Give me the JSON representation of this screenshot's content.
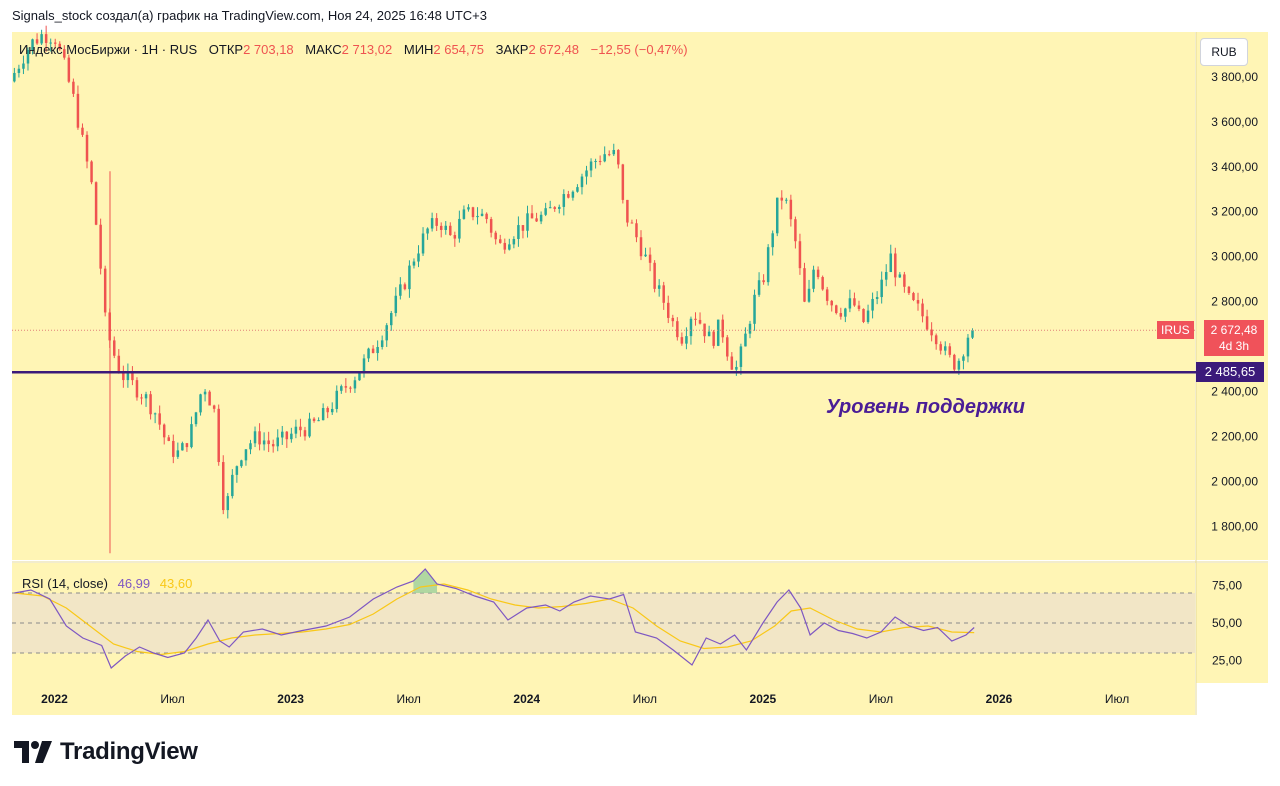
{
  "header": {
    "text": "Signals_stock создал(а) график на TradingView.com, Ноя 24, 2025 16:48 UTC+3"
  },
  "legend": {
    "symbol": "Индекс МосБиржи · 1Н · RUS",
    "open_label": "ОТКР",
    "open_value": "2 703,18",
    "high_label": "МАКС",
    "high_value": "2 713,02",
    "low_label": "МИН",
    "low_value": "2 654,75",
    "close_label": "ЗАКР",
    "close_value": "2 672,48",
    "change_value": "−12,55 (−0,47%)"
  },
  "currency": "RUB",
  "price_tag": {
    "ticker": "IRUS",
    "price": "2 672,48",
    "countdown": "4d 3h"
  },
  "support_tag": "2 485,65",
  "support_label": "Уровень поддержки",
  "rsi_legend": {
    "label": "RSI (14, close)",
    "rsi_value": "46,99",
    "ma_value": "43,60"
  },
  "logo": {
    "text": "TradingView"
  },
  "colors": {
    "background": "#fff5b5",
    "up": "#26a69a",
    "down": "#ef5350",
    "support": "#3b1a7a",
    "rsi": "#7e57c2",
    "rsi_ma": "#f9c818"
  },
  "chart_data": {
    "type": "candlestick",
    "title": "Индекс МосБиржи · 1Н · RUS",
    "price_axis": {
      "ticks": [
        1800,
        2000,
        2200,
        2400,
        2600,
        2800,
        3000,
        3200,
        3400,
        3600,
        3800
      ],
      "tick_labels": [
        "1 800,00",
        "2 000,00",
        "2 200,00",
        "2 400,00",
        "2 600,00",
        "2 800,00",
        "3 000,00",
        "3 200,00",
        "3 400,00",
        "3 600,00",
        "3 800,00"
      ],
      "range": [
        1650,
        4000
      ]
    },
    "time_axis": {
      "range": [
        2021.82,
        2026.83
      ],
      "ticks": [
        {
          "t": 2022.0,
          "label": "2022",
          "bold": true
        },
        {
          "t": 2022.5,
          "label": "Июл",
          "bold": false
        },
        {
          "t": 2023.0,
          "label": "2023",
          "bold": true
        },
        {
          "t": 2023.5,
          "label": "Июл",
          "bold": false
        },
        {
          "t": 2024.0,
          "label": "2024",
          "bold": true
        },
        {
          "t": 2024.5,
          "label": "Июл",
          "bold": false
        },
        {
          "t": 2025.0,
          "label": "2025",
          "bold": true
        },
        {
          "t": 2025.5,
          "label": "Июл",
          "bold": false
        },
        {
          "t": 2026.0,
          "label": "2026",
          "bold": true
        },
        {
          "t": 2026.5,
          "label": "Июл",
          "bold": false
        }
      ]
    },
    "support_level": 2485.65,
    "last_close": 2672.48,
    "price_path": [
      [
        2021.83,
        3780
      ],
      [
        2021.88,
        3880
      ],
      [
        2021.92,
        3950
      ],
      [
        2021.97,
        3990
      ],
      [
        2022.02,
        3980
      ],
      [
        2022.06,
        3850
      ],
      [
        2022.1,
        3700
      ],
      [
        2022.14,
        3500
      ],
      [
        2022.18,
        3300
      ],
      [
        2022.2,
        3100
      ],
      [
        2022.22,
        2900
      ],
      [
        2022.235,
        2700
      ],
      [
        2022.26,
        2600
      ],
      [
        2022.3,
        2480
      ],
      [
        2022.35,
        2430
      ],
      [
        2022.4,
        2380
      ],
      [
        2022.45,
        2300
      ],
      [
        2022.5,
        2150
      ],
      [
        2022.55,
        2120
      ],
      [
        2022.6,
        2230
      ],
      [
        2022.65,
        2440
      ],
      [
        2022.7,
        2300
      ],
      [
        2022.72,
        2050
      ],
      [
        2022.74,
        1850
      ],
      [
        2022.78,
        2050
      ],
      [
        2022.82,
        2150
      ],
      [
        2022.88,
        2200
      ],
      [
        2022.94,
        2160
      ],
      [
        2023.0,
        2190
      ],
      [
        2023.05,
        2230
      ],
      [
        2023.1,
        2240
      ],
      [
        2023.15,
        2280
      ],
      [
        2023.2,
        2350
      ],
      [
        2023.25,
        2420
      ],
      [
        2023.3,
        2480
      ],
      [
        2023.35,
        2560
      ],
      [
        2023.4,
        2650
      ],
      [
        2023.45,
        2760
      ],
      [
        2023.5,
        2880
      ],
      [
        2023.55,
        3020
      ],
      [
        2023.6,
        3120
      ],
      [
        2023.65,
        3160
      ],
      [
        2023.7,
        3080
      ],
      [
        2023.75,
        3180
      ],
      [
        2023.8,
        3200
      ],
      [
        2023.85,
        3170
      ],
      [
        2023.9,
        3040
      ],
      [
        2023.95,
        3100
      ],
      [
        2024.0,
        3140
      ],
      [
        2024.05,
        3170
      ],
      [
        2024.1,
        3180
      ],
      [
        2024.15,
        3250
      ],
      [
        2024.2,
        3300
      ],
      [
        2024.25,
        3360
      ],
      [
        2024.3,
        3420
      ],
      [
        2024.35,
        3460
      ],
      [
        2024.4,
        3450
      ],
      [
        2024.43,
        3200
      ],
      [
        2024.47,
        3120
      ],
      [
        2024.52,
        3000
      ],
      [
        2024.56,
        2880
      ],
      [
        2024.6,
        2800
      ],
      [
        2024.64,
        2700
      ],
      [
        2024.68,
        2640
      ],
      [
        2024.72,
        2760
      ],
      [
        2024.76,
        2700
      ],
      [
        2024.8,
        2620
      ],
      [
        2024.84,
        2700
      ],
      [
        2024.88,
        2540
      ],
      [
        2024.91,
        2500
      ],
      [
        2024.94,
        2620
      ],
      [
        2024.98,
        2800
      ],
      [
        2025.02,
        2900
      ],
      [
        2025.06,
        3120
      ],
      [
        2025.09,
        3280
      ],
      [
        2025.12,
        3230
      ],
      [
        2025.16,
        3050
      ],
      [
        2025.2,
        2750
      ],
      [
        2025.24,
        2980
      ],
      [
        2025.28,
        2850
      ],
      [
        2025.32,
        2780
      ],
      [
        2025.36,
        2760
      ],
      [
        2025.4,
        2800
      ],
      [
        2025.44,
        2700
      ],
      [
        2025.48,
        2780
      ],
      [
        2025.52,
        2870
      ],
      [
        2025.56,
        3000
      ],
      [
        2025.6,
        2880
      ],
      [
        2025.64,
        2800
      ],
      [
        2025.68,
        2760
      ],
      [
        2025.72,
        2700
      ],
      [
        2025.76,
        2640
      ],
      [
        2025.8,
        2550
      ],
      [
        2025.84,
        2520
      ],
      [
        2025.87,
        2600
      ],
      [
        2025.895,
        2672
      ]
    ],
    "rsi": {
      "label": "RSI (14, close)",
      "period": 14,
      "current": 46.99,
      "ma_current": 43.6,
      "axis_ticks": [
        25,
        50,
        75
      ],
      "axis_labels": [
        "25,00",
        "50,00",
        "75,00"
      ],
      "band": [
        30,
        70
      ],
      "range": [
        10,
        90
      ],
      "path": [
        [
          2021.83,
          70
        ],
        [
          2021.9,
          72
        ],
        [
          2021.98,
          66
        ],
        [
          2022.05,
          48
        ],
        [
          2022.12,
          40
        ],
        [
          2022.2,
          35
        ],
        [
          2022.24,
          20
        ],
        [
          2022.3,
          28
        ],
        [
          2022.36,
          34
        ],
        [
          2022.42,
          30
        ],
        [
          2022.48,
          27
        ],
        [
          2022.55,
          30
        ],
        [
          2022.6,
          40
        ],
        [
          2022.65,
          52
        ],
        [
          2022.7,
          38
        ],
        [
          2022.74,
          34
        ],
        [
          2022.8,
          44
        ],
        [
          2022.88,
          46
        ],
        [
          2022.96,
          42
        ],
        [
          2023.05,
          45
        ],
        [
          2023.15,
          48
        ],
        [
          2023.25,
          54
        ],
        [
          2023.35,
          66
        ],
        [
          2023.45,
          74
        ],
        [
          2023.52,
          78
        ],
        [
          2023.57,
          86
        ],
        [
          2023.62,
          76
        ],
        [
          2023.7,
          73
        ],
        [
          2023.78,
          68
        ],
        [
          2023.86,
          64
        ],
        [
          2023.92,
          52
        ],
        [
          2024.0,
          60
        ],
        [
          2024.08,
          62
        ],
        [
          2024.14,
          58
        ],
        [
          2024.2,
          64
        ],
        [
          2024.27,
          68
        ],
        [
          2024.35,
          66
        ],
        [
          2024.41,
          69
        ],
        [
          2024.46,
          44
        ],
        [
          2024.55,
          40
        ],
        [
          2024.62,
          32
        ],
        [
          2024.7,
          22
        ],
        [
          2024.76,
          40
        ],
        [
          2024.82,
          36
        ],
        [
          2024.88,
          42
        ],
        [
          2024.93,
          32
        ],
        [
          2025.0,
          50
        ],
        [
          2025.06,
          64
        ],
        [
          2025.11,
          72
        ],
        [
          2025.16,
          60
        ],
        [
          2025.2,
          42
        ],
        [
          2025.26,
          50
        ],
        [
          2025.32,
          45
        ],
        [
          2025.38,
          43
        ],
        [
          2025.44,
          40
        ],
        [
          2025.5,
          44
        ],
        [
          2025.56,
          54
        ],
        [
          2025.62,
          48
        ],
        [
          2025.68,
          45
        ],
        [
          2025.74,
          47
        ],
        [
          2025.8,
          38
        ],
        [
          2025.86,
          42
        ],
        [
          2025.895,
          47
        ]
      ],
      "ma_path": [
        [
          2021.83,
          70
        ],
        [
          2021.95,
          68
        ],
        [
          2022.05,
          60
        ],
        [
          2022.15,
          48
        ],
        [
          2022.25,
          36
        ],
        [
          2022.35,
          31
        ],
        [
          2022.45,
          29
        ],
        [
          2022.55,
          31
        ],
        [
          2022.65,
          36
        ],
        [
          2022.75,
          40
        ],
        [
          2022.85,
          42
        ],
        [
          2022.95,
          43
        ],
        [
          2023.05,
          44
        ],
        [
          2023.15,
          46
        ],
        [
          2023.25,
          49
        ],
        [
          2023.35,
          56
        ],
        [
          2023.45,
          66
        ],
        [
          2023.55,
          74
        ],
        [
          2023.65,
          76
        ],
        [
          2023.75,
          72
        ],
        [
          2023.85,
          66
        ],
        [
          2023.95,
          62
        ],
        [
          2024.05,
          60
        ],
        [
          2024.15,
          61
        ],
        [
          2024.25,
          63
        ],
        [
          2024.35,
          66
        ],
        [
          2024.45,
          60
        ],
        [
          2024.55,
          48
        ],
        [
          2024.65,
          38
        ],
        [
          2024.75,
          33
        ],
        [
          2024.85,
          34
        ],
        [
          2024.95,
          38
        ],
        [
          2025.05,
          48
        ],
        [
          2025.12,
          58
        ],
        [
          2025.2,
          60
        ],
        [
          2025.3,
          52
        ],
        [
          2025.4,
          46
        ],
        [
          2025.5,
          44
        ],
        [
          2025.6,
          47
        ],
        [
          2025.7,
          48
        ],
        [
          2025.8,
          44
        ],
        [
          2025.895,
          43.6
        ]
      ]
    }
  }
}
